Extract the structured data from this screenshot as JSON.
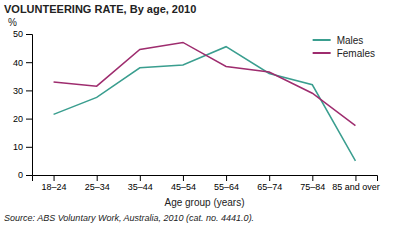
{
  "chart_data": {
    "type": "line",
    "title": "VOLUNTEERING RATE, By age, 2010",
    "xlabel": "Age group (years)",
    "ylabel": "%",
    "source": "Source: ABS Voluntary Work, Australia, 2010 (cat. no. 4441.0).",
    "categories": [
      "18–24",
      "25–34",
      "35–44",
      "45–54",
      "55–64",
      "65–74",
      "75–84",
      "85 and over"
    ],
    "series": [
      {
        "name": "Males",
        "color": "#3a9e8f",
        "values": [
          21.5,
          27.5,
          38.0,
          39.0,
          45.5,
          36.0,
          32.0,
          5.0
        ]
      },
      {
        "name": "Females",
        "color": "#9e2c6e",
        "values": [
          33.0,
          31.5,
          44.5,
          47.0,
          38.5,
          36.5,
          29.0,
          17.5
        ]
      }
    ],
    "ylim": [
      0,
      50
    ],
    "yticks": [
      0,
      10,
      20,
      30,
      40,
      50
    ],
    "grid": false,
    "legend": "upper right"
  }
}
